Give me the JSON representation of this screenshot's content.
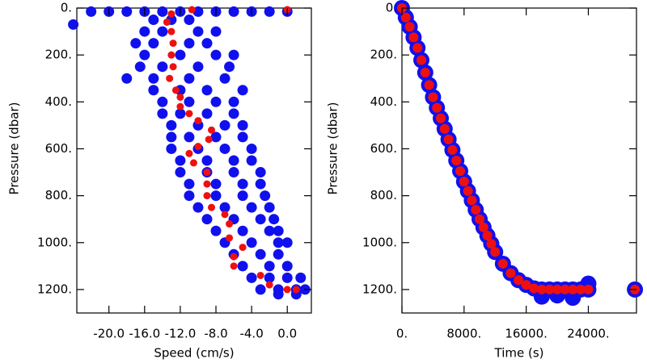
{
  "chart_data": [
    {
      "type": "scatter",
      "xlabel": "Speed (cm/s)",
      "ylabel": "Pressure (dbar)",
      "xlim": [
        -23.6,
        2.7
      ],
      "ylim": [
        0,
        1300
      ],
      "y_inverted": true,
      "xticks": [
        {
          "value": -20,
          "label": "-20.0"
        },
        {
          "value": -16,
          "label": "-16.0"
        },
        {
          "value": -12,
          "label": "-12.0"
        },
        {
          "value": -8,
          "label": "-8.0"
        },
        {
          "value": -4,
          "label": "-4.0"
        },
        {
          "value": 0,
          "label": "0.0"
        }
      ],
      "yticks": [
        {
          "value": 0,
          "label": "0."
        },
        {
          "value": 200,
          "label": "200."
        },
        {
          "value": 400,
          "label": "400."
        },
        {
          "value": 600,
          "label": "600."
        },
        {
          "value": 800,
          "label": "800."
        },
        {
          "value": 1000,
          "label": "1000."
        },
        {
          "value": 1200,
          "label": "1200."
        }
      ],
      "series": [
        {
          "color": "#1010ee",
          "x": [
            -22,
            -20,
            -18,
            -16,
            -14,
            -12,
            -10,
            -8,
            -6,
            -4,
            -2,
            0,
            -24,
            -15,
            -13,
            -11,
            -16,
            -14,
            -10,
            -8,
            -17,
            -15,
            -11,
            -9,
            -16,
            -12,
            -8,
            -6,
            -16.5,
            -14,
            -10,
            -6.5,
            -18,
            -15,
            -11,
            -7,
            -15,
            -12,
            -9,
            -5,
            -14,
            -11,
            -8,
            -6,
            -14,
            -12,
            -9,
            -6,
            -13,
            -10,
            -7,
            -5,
            -13,
            -11,
            -8,
            -5,
            -13,
            -10,
            -7,
            -4,
            -12,
            -9,
            -6,
            -4,
            -12,
            -9,
            -6,
            -3,
            -11,
            -8,
            -5,
            -3,
            -11,
            -8,
            -5,
            -2.5,
            -10,
            -7,
            -4,
            -2,
            -9,
            -6,
            -3,
            -1.5,
            -8,
            -5,
            -2,
            -1,
            -7,
            -4,
            -1,
            0,
            -6,
            -3,
            -1,
            -5,
            -2,
            0,
            -4,
            -2,
            0,
            1.5,
            -3,
            -1,
            1,
            2,
            -1,
            1
          ],
          "y": [
            15,
            15,
            15,
            15,
            15,
            15,
            15,
            15,
            15,
            15,
            15,
            15,
            70,
            50,
            50,
            50,
            100,
            100,
            100,
            100,
            150,
            150,
            150,
            150,
            200,
            200,
            200,
            200,
            250,
            250,
            250,
            250,
            300,
            300,
            300,
            300,
            350,
            350,
            350,
            350,
            400,
            400,
            400,
            400,
            450,
            450,
            450,
            450,
            500,
            500,
            500,
            500,
            550,
            550,
            550,
            550,
            600,
            600,
            600,
            600,
            650,
            650,
            650,
            650,
            700,
            700,
            700,
            700,
            750,
            750,
            750,
            750,
            800,
            800,
            800,
            800,
            850,
            850,
            850,
            850,
            900,
            900,
            900,
            900,
            950,
            950,
            950,
            950,
            1000,
            1000,
            1000,
            1000,
            1050,
            1050,
            1050,
            1100,
            1100,
            1100,
            1150,
            1150,
            1150,
            1150,
            1200,
            1200,
            1200,
            1200,
            1220,
            1220
          ]
        },
        {
          "color": "#ee1010",
          "x": [
            -10.7,
            0,
            -13,
            -13.5,
            -13,
            -12.8,
            -13,
            -12.8,
            -13.2,
            -12.5,
            -12,
            -12,
            -11,
            -10,
            -8.5,
            -8.8,
            -10,
            -11,
            -10.5,
            -9,
            -9,
            -9,
            -8.5,
            -7,
            -6.5,
            -6.5,
            -5,
            -6,
            -6,
            -3,
            -2,
            0,
            1
          ],
          "y": [
            7,
            7,
            25,
            60,
            100,
            150,
            200,
            250,
            300,
            350,
            380,
            420,
            450,
            480,
            520,
            560,
            590,
            620,
            660,
            700,
            750,
            800,
            850,
            880,
            920,
            980,
            1020,
            1060,
            1100,
            1140,
            1180,
            1200,
            1200
          ]
        }
      ]
    },
    {
      "type": "scatter",
      "xlabel": "Time (s)",
      "ylabel": "Pressure (dbar)",
      "xlim": [
        0,
        30200
      ],
      "ylim": [
        0,
        1300
      ],
      "y_inverted": true,
      "xticks": [
        {
          "value": 0,
          "label": "0."
        },
        {
          "value": 8000,
          "label": "8000."
        },
        {
          "value": 16000,
          "label": "16000."
        },
        {
          "value": 24000,
          "label": "24000."
        }
      ],
      "yticks": [
        {
          "value": 0,
          "label": "0."
        },
        {
          "value": 200,
          "label": "200."
        },
        {
          "value": 400,
          "label": "400."
        },
        {
          "value": 600,
          "label": "600."
        },
        {
          "value": 800,
          "label": "800."
        },
        {
          "value": 1000,
          "label": "1000."
        },
        {
          "value": 1200,
          "label": "1200."
        }
      ],
      "series": [
        {
          "color": "#1010ee",
          "x": [
            0,
            500,
            1000,
            1500,
            2000,
            2500,
            3000,
            3500,
            4000,
            4500,
            5000,
            5500,
            6000,
            6500,
            7000,
            7500,
            8000,
            8500,
            9000,
            9500,
            10000,
            10500,
            11000,
            11500,
            12000,
            13000,
            14000,
            15000,
            16000,
            17000,
            18000,
            19000,
            20000,
            21000,
            22000,
            23000,
            24000,
            30000,
            18000,
            22000,
            24000,
            20000
          ],
          "y": [
            0,
            40,
            80,
            125,
            170,
            222,
            275,
            328,
            380,
            425,
            470,
            515,
            560,
            605,
            650,
            695,
            740,
            780,
            820,
            860,
            900,
            935,
            970,
            1005,
            1040,
            1090,
            1130,
            1160,
            1180,
            1195,
            1200,
            1200,
            1200,
            1200,
            1200,
            1200,
            1200,
            1200,
            1230,
            1235,
            1175,
            1225
          ]
        },
        {
          "color": "#ee1010",
          "x": [
            0,
            500,
            1000,
            1500,
            2000,
            2500,
            3000,
            3500,
            4000,
            4500,
            5000,
            5500,
            6000,
            6500,
            7000,
            7500,
            8000,
            8500,
            9000,
            9500,
            10000,
            10500,
            11000,
            11500,
            12000,
            13000,
            14000,
            15000,
            16000,
            17000,
            18000,
            19000,
            20000,
            21000,
            22000,
            23000,
            24000,
            30000
          ],
          "y": [
            0,
            40,
            80,
            125,
            170,
            222,
            275,
            328,
            380,
            425,
            470,
            515,
            560,
            605,
            650,
            695,
            740,
            780,
            820,
            860,
            900,
            935,
            970,
            1005,
            1040,
            1090,
            1130,
            1160,
            1180,
            1195,
            1200,
            1200,
            1200,
            1200,
            1200,
            1200,
            1200,
            1200
          ]
        }
      ]
    }
  ]
}
